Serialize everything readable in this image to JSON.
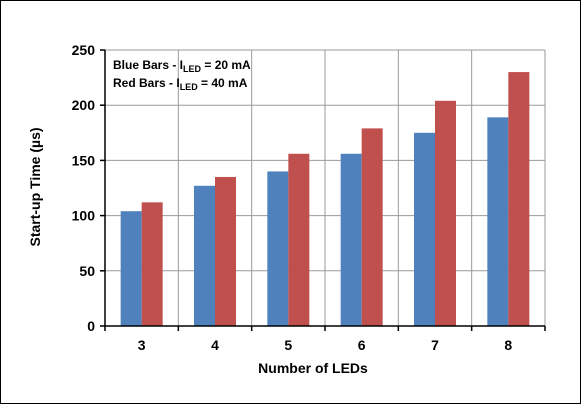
{
  "chart_data": {
    "type": "bar",
    "title": "",
    "xlabel": "Number of LEDs",
    "ylabel": "Start-up Time (µs)",
    "categories": [
      "3",
      "4",
      "5",
      "6",
      "7",
      "8"
    ],
    "ylim": [
      0,
      250
    ],
    "yticks": [
      "0",
      "50",
      "100",
      "150",
      "200",
      "250"
    ],
    "grid": true,
    "legend_position": "top-left",
    "series": [
      {
        "values": [
          104,
          127,
          140,
          156,
          175,
          189
        ]
      },
      {
        "values": [
          112,
          135,
          156,
          179,
          204,
          230
        ]
      }
    ],
    "annotations": [
      {
        "pre": "Blue Bars - I",
        "sub": "LED",
        "post": " = 20 mA"
      },
      {
        "pre": "Red Bars - I",
        "sub": "LED",
        "post": " = 40 mA"
      }
    ],
    "colors": {
      "series_0": "#4f81bd",
      "series_1": "#c0504d",
      "grid": "#9a9a9a",
      "axis": "#000000"
    }
  }
}
